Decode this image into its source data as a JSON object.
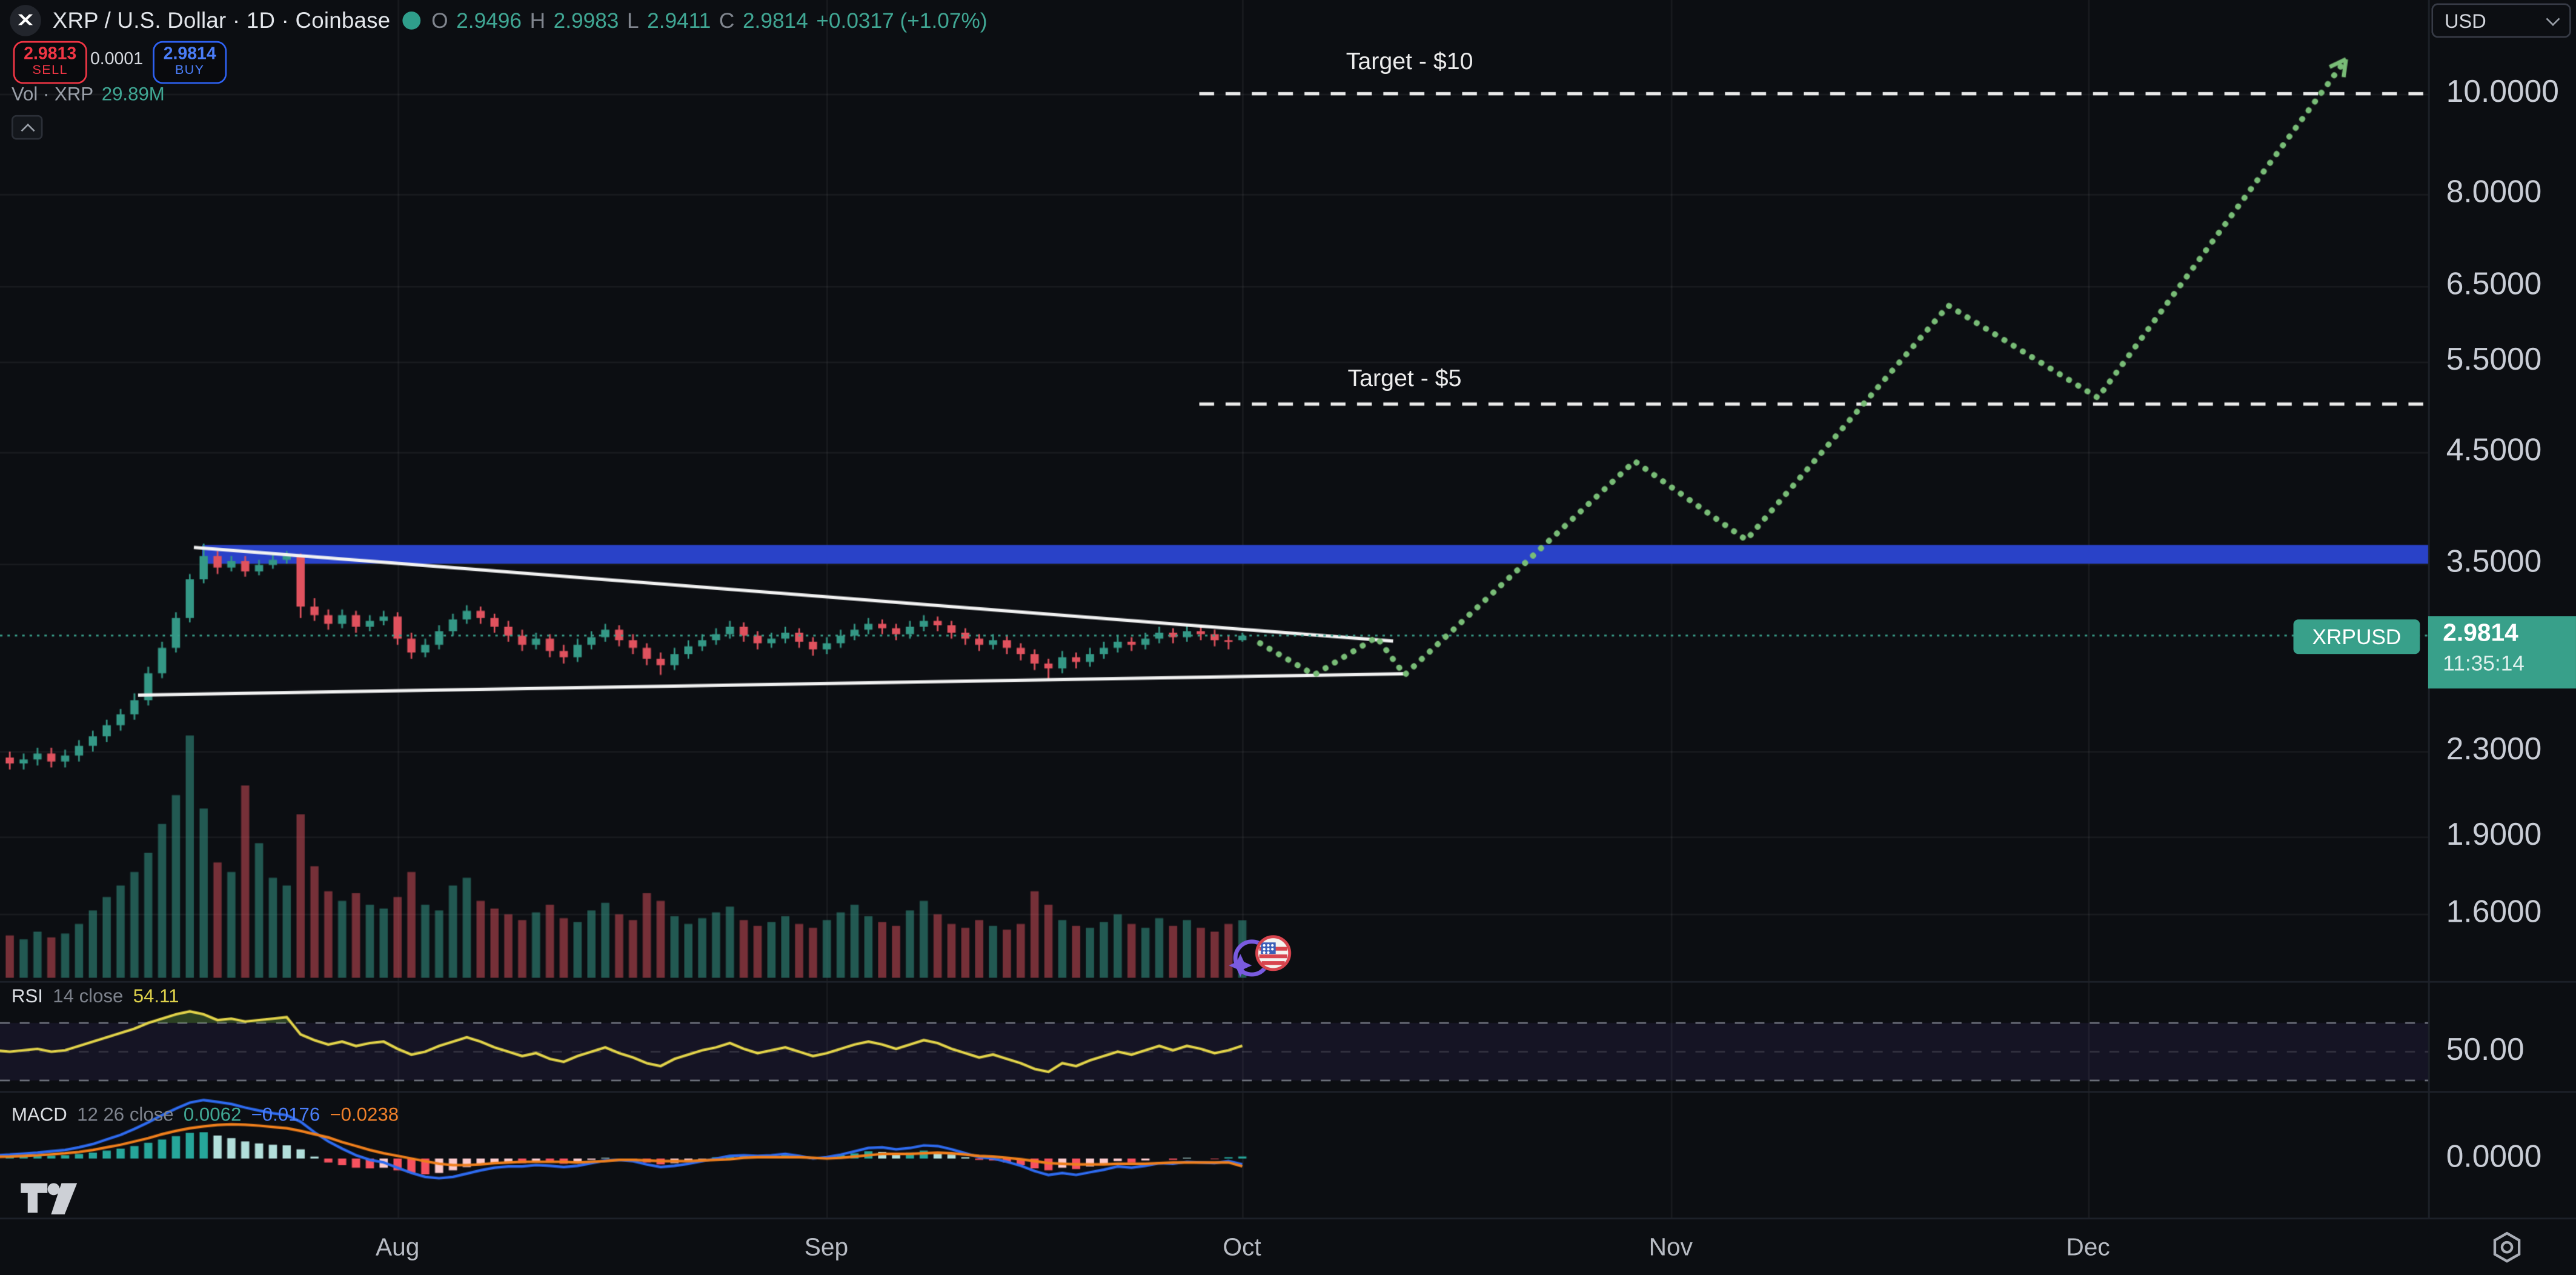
{
  "header": {
    "title": "XRP / U.S. Dollar · 1D · Coinbase",
    "ohlc": [
      {
        "k": "O",
        "v": "2.9496"
      },
      {
        "k": "H",
        "v": "2.9983"
      },
      {
        "k": "L",
        "v": "2.9411"
      },
      {
        "k": "C",
        "v": "2.9814"
      }
    ],
    "change": "+0.0317 (+1.07%)"
  },
  "order_panel": {
    "sell_price": "2.9813",
    "sell_label": "SELL",
    "spread": "0.0001",
    "buy_price": "2.9814",
    "buy_label": "BUY"
  },
  "volume_legend": {
    "label": "Vol · XRP",
    "value": "29.89M"
  },
  "rsi_legend": {
    "name": "RSI",
    "params": "14 close",
    "value": "54.11"
  },
  "macd_legend": {
    "name": "MACD",
    "params": "12 26 close",
    "v_hist": "0.0062",
    "v_macd": "−0.0176",
    "v_signal": "−0.0238"
  },
  "annotations": {
    "target10": "Target - $10",
    "target5": "Target - $5"
  },
  "price_scale": {
    "currency": "USD",
    "labels": [
      {
        "text": "10.0000",
        "price": 10.0
      },
      {
        "text": "8.0000",
        "price": 8.0
      },
      {
        "text": "6.5000",
        "price": 6.5
      },
      {
        "text": "5.5000",
        "price": 5.5
      },
      {
        "text": "4.5000",
        "price": 4.5
      },
      {
        "text": "3.5000",
        "price": 3.5
      },
      {
        "text": "2.3000",
        "price": 2.3
      },
      {
        "text": "1.9000",
        "price": 1.9
      },
      {
        "text": "1.6000",
        "price": 1.6
      }
    ],
    "symbol_badge": "XRPUSD",
    "last_price": "2.9814",
    "countdown": "11:35:14",
    "rsi_axis_label": "50.00",
    "macd_axis_label": "0.0000"
  },
  "time_axis": {
    "months": [
      {
        "label": "Aug",
        "x": 242
      },
      {
        "label": "Sep",
        "x": 503
      },
      {
        "label": "Oct",
        "x": 756
      },
      {
        "label": "Nov",
        "x": 1017
      },
      {
        "label": "Dec",
        "x": 1271
      }
    ]
  },
  "colors": {
    "bg": "#0c0e12",
    "up": "#349886",
    "down": "#e0525e",
    "band_blue": "#2942c8",
    "trendline": "#f2f2f2",
    "projection_green": "#79bd77",
    "price_line": "#3aa18c",
    "rsi_line": "#e3d44a",
    "macd_line": "#2e6bf0",
    "signal_line": "#ef7f1c",
    "hist_up_grow": "#26A69A",
    "hist_up_fall": "#B2DFDB",
    "hist_dn_grow": "#F7525F",
    "hist_dn_fall": "#FCCBCD"
  },
  "chart_data": {
    "type": "candlestick",
    "symbol": "XRPUSD",
    "timeframe": "1D",
    "scale": "log",
    "ylim": [
      1.45,
      11.5
    ],
    "resistance_zone": {
      "price_top": 3.65,
      "price_bottom": 3.5,
      "start_x": 123
    },
    "targets": [
      {
        "price": 10,
        "label": "Target - $10",
        "x_start": 730
      },
      {
        "price": 5,
        "label": "Target - $5",
        "x_start": 730
      }
    ],
    "current_price": 2.9814,
    "trendlines": [
      {
        "points": [
          [
            118,
            3.63
          ],
          [
            848,
            2.944
          ]
        ]
      },
      {
        "points": [
          [
            84,
            2.61
          ],
          [
            855,
            2.737
          ]
        ]
      }
    ],
    "projection": [
      [
        767,
        2.93
      ],
      [
        800,
        2.73
      ],
      [
        838,
        2.97
      ],
      [
        855,
        2.73
      ],
      [
        995,
        4.4
      ],
      [
        1063,
        3.69
      ],
      [
        1186,
        6.23
      ],
      [
        1277,
        5.07
      ],
      [
        1428,
        10.8
      ]
    ],
    "candles": [
      [
        2.25,
        2.3,
        2.22,
        2.27
      ],
      [
        2.27,
        2.3,
        2.21,
        2.24
      ],
      [
        2.24,
        2.29,
        2.21,
        2.26
      ],
      [
        2.26,
        2.32,
        2.23,
        2.29
      ],
      [
        2.29,
        2.32,
        2.22,
        2.25
      ],
      [
        2.25,
        2.31,
        2.22,
        2.28
      ],
      [
        2.28,
        2.36,
        2.25,
        2.33
      ],
      [
        2.33,
        2.41,
        2.3,
        2.38
      ],
      [
        2.38,
        2.47,
        2.35,
        2.44
      ],
      [
        2.44,
        2.53,
        2.41,
        2.5
      ],
      [
        2.5,
        2.62,
        2.47,
        2.58
      ],
      [
        2.58,
        2.78,
        2.55,
        2.74
      ],
      [
        2.74,
        2.94,
        2.71,
        2.9
      ],
      [
        2.9,
        3.14,
        2.87,
        3.1
      ],
      [
        3.1,
        3.42,
        3.07,
        3.38
      ],
      [
        3.38,
        3.66,
        3.35,
        3.56
      ],
      [
        3.56,
        3.6,
        3.42,
        3.47
      ],
      [
        3.47,
        3.56,
        3.44,
        3.52
      ],
      [
        3.52,
        3.56,
        3.4,
        3.44
      ],
      [
        3.44,
        3.53,
        3.41,
        3.49
      ],
      [
        3.49,
        3.57,
        3.46,
        3.53
      ],
      [
        3.53,
        3.6,
        3.5,
        3.56
      ],
      [
        3.56,
        3.58,
        3.1,
        3.18
      ],
      [
        3.18,
        3.24,
        3.08,
        3.12
      ],
      [
        3.12,
        3.16,
        3.02,
        3.06
      ],
      [
        3.06,
        3.16,
        3.03,
        3.12
      ],
      [
        3.12,
        3.15,
        3.0,
        3.04
      ],
      [
        3.04,
        3.12,
        3.01,
        3.08
      ],
      [
        3.08,
        3.15,
        3.05,
        3.11
      ],
      [
        3.11,
        3.14,
        2.92,
        2.96
      ],
      [
        2.96,
        3.0,
        2.83,
        2.87
      ],
      [
        2.87,
        2.96,
        2.84,
        2.92
      ],
      [
        2.92,
        3.05,
        2.89,
        3.01
      ],
      [
        3.01,
        3.13,
        2.98,
        3.09
      ],
      [
        3.09,
        3.19,
        3.06,
        3.15
      ],
      [
        3.15,
        3.18,
        3.06,
        3.1
      ],
      [
        3.1,
        3.13,
        3.0,
        3.04
      ],
      [
        3.04,
        3.08,
        2.94,
        2.98
      ],
      [
        2.98,
        3.02,
        2.88,
        2.92
      ],
      [
        2.92,
        3.0,
        2.89,
        2.96
      ],
      [
        2.96,
        2.99,
        2.84,
        2.88
      ],
      [
        2.88,
        2.92,
        2.8,
        2.84
      ],
      [
        2.84,
        2.96,
        2.81,
        2.92
      ],
      [
        2.92,
        3.01,
        2.89,
        2.97
      ],
      [
        2.97,
        3.06,
        2.94,
        3.02
      ],
      [
        3.02,
        3.05,
        2.91,
        2.95
      ],
      [
        2.95,
        2.99,
        2.86,
        2.9
      ],
      [
        2.9,
        2.93,
        2.79,
        2.83
      ],
      [
        2.83,
        2.87,
        2.73,
        2.79
      ],
      [
        2.79,
        2.9,
        2.76,
        2.86
      ],
      [
        2.86,
        2.95,
        2.83,
        2.91
      ],
      [
        2.91,
        2.99,
        2.88,
        2.95
      ],
      [
        2.95,
        3.03,
        2.92,
        2.99
      ],
      [
        2.99,
        3.08,
        2.96,
        3.04
      ],
      [
        3.04,
        3.07,
        2.94,
        2.98
      ],
      [
        2.98,
        3.01,
        2.89,
        2.93
      ],
      [
        2.93,
        3.0,
        2.9,
        2.96
      ],
      [
        2.96,
        3.04,
        2.93,
        3.0
      ],
      [
        3.0,
        3.03,
        2.9,
        2.94
      ],
      [
        2.94,
        2.97,
        2.85,
        2.89
      ],
      [
        2.89,
        2.97,
        2.86,
        2.93
      ],
      [
        2.93,
        3.02,
        2.9,
        2.98
      ],
      [
        2.98,
        3.06,
        2.95,
        3.02
      ],
      [
        3.02,
        3.1,
        2.99,
        3.06
      ],
      [
        3.06,
        3.09,
        2.99,
        3.03
      ],
      [
        3.03,
        3.06,
        2.95,
        2.99
      ],
      [
        2.99,
        3.08,
        2.96,
        3.04
      ],
      [
        3.04,
        3.12,
        3.01,
        3.08
      ],
      [
        3.08,
        3.11,
        3.01,
        3.05
      ],
      [
        3.05,
        3.08,
        2.96,
        3.0
      ],
      [
        3.0,
        3.03,
        2.92,
        2.96
      ],
      [
        2.96,
        2.99,
        2.88,
        2.92
      ],
      [
        2.92,
        2.99,
        2.89,
        2.95
      ],
      [
        2.95,
        2.98,
        2.86,
        2.9
      ],
      [
        2.9,
        2.93,
        2.82,
        2.86
      ],
      [
        2.86,
        2.89,
        2.76,
        2.8
      ],
      [
        2.8,
        2.83,
        2.7,
        2.77
      ],
      [
        2.77,
        2.88,
        2.74,
        2.84
      ],
      [
        2.84,
        2.87,
        2.77,
        2.81
      ],
      [
        2.81,
        2.9,
        2.78,
        2.86
      ],
      [
        2.86,
        2.94,
        2.83,
        2.9
      ],
      [
        2.9,
        2.98,
        2.87,
        2.94
      ],
      [
        2.94,
        2.97,
        2.88,
        2.92
      ],
      [
        2.92,
        3.0,
        2.89,
        2.96
      ],
      [
        2.96,
        3.04,
        2.93,
        3.0
      ],
      [
        3.0,
        3.03,
        2.93,
        2.97
      ],
      [
        2.97,
        3.05,
        2.94,
        3.01
      ],
      [
        3.01,
        3.04,
        2.95,
        2.99
      ],
      [
        2.99,
        3.02,
        2.91,
        2.95
      ],
      [
        2.95,
        2.98,
        2.89,
        2.94
      ],
      [
        2.95,
        3.0,
        2.94,
        2.98
      ]
    ],
    "volume_m": [
      25,
      22,
      20,
      24,
      21,
      23,
      28,
      35,
      42,
      48,
      55,
      65,
      80,
      95,
      126,
      88,
      60,
      55,
      100,
      70,
      52,
      48,
      85,
      58,
      45,
      40,
      44,
      38,
      36,
      42,
      55,
      38,
      35,
      48,
      52,
      40,
      36,
      33,
      30,
      34,
      38,
      31,
      29,
      35,
      39,
      33,
      30,
      44,
      40,
      32,
      28,
      31,
      34,
      37,
      30,
      27,
      29,
      32,
      28,
      26,
      30,
      34,
      38,
      32,
      29,
      27,
      35,
      40,
      33,
      28,
      26,
      30,
      27,
      25,
      28,
      45,
      38,
      30,
      27,
      26,
      29,
      33,
      28,
      26,
      31,
      27,
      30,
      26,
      24,
      28,
      29.89
    ],
    "rsi": {
      "period": 14,
      "last": 54.11,
      "bands": [
        70,
        50,
        30
      ],
      "values": [
        51,
        50,
        51,
        52,
        50,
        51,
        54,
        57,
        60,
        63,
        66,
        70,
        73,
        76,
        78,
        76,
        72,
        73,
        71,
        72,
        73,
        74,
        62,
        58,
        55,
        57,
        54,
        56,
        57,
        52,
        48,
        50,
        54,
        57,
        60,
        57,
        53,
        50,
        47,
        49,
        45,
        43,
        47,
        50,
        53,
        49,
        46,
        42,
        40,
        45,
        48,
        51,
        53,
        56,
        52,
        49,
        51,
        53,
        50,
        47,
        49,
        52,
        55,
        57,
        55,
        52,
        55,
        58,
        56,
        52,
        49,
        46,
        48,
        45,
        42,
        38,
        36,
        42,
        40,
        44,
        47,
        50,
        48,
        51,
        54,
        51,
        54,
        52,
        49,
        51,
        54.11
      ]
    },
    "macd": {
      "fast": 12,
      "slow": 26,
      "last_hist": 0.0062,
      "last_macd": -0.0176,
      "last_signal": -0.0238,
      "macd_line": [
        0.01,
        0.012,
        0.015,
        0.018,
        0.022,
        0.026,
        0.034,
        0.044,
        0.058,
        0.072,
        0.09,
        0.11,
        0.132,
        0.152,
        0.17,
        0.178,
        0.172,
        0.166,
        0.155,
        0.146,
        0.138,
        0.132,
        0.112,
        0.08,
        0.052,
        0.03,
        0.01,
        -0.004,
        -0.012,
        -0.028,
        -0.044,
        -0.056,
        -0.06,
        -0.056,
        -0.046,
        -0.036,
        -0.028,
        -0.024,
        -0.024,
        -0.02,
        -0.022,
        -0.026,
        -0.022,
        -0.014,
        -0.006,
        -0.004,
        -0.008,
        -0.018,
        -0.026,
        -0.022,
        -0.016,
        -0.008,
        0.0,
        0.008,
        0.01,
        0.008,
        0.01,
        0.014,
        0.008,
        0.0,
        0.004,
        0.012,
        0.022,
        0.032,
        0.034,
        0.028,
        0.032,
        0.04,
        0.038,
        0.028,
        0.016,
        0.004,
        0.0,
        -0.01,
        -0.022,
        -0.038,
        -0.05,
        -0.044,
        -0.05,
        -0.042,
        -0.034,
        -0.024,
        -0.028,
        -0.022,
        -0.014,
        -0.016,
        -0.01,
        -0.012,
        -0.014,
        -0.008,
        -0.0176
      ],
      "hist": [
        0.005,
        0.006,
        0.007,
        0.008,
        0.009,
        0.01,
        0.014,
        0.018,
        0.024,
        0.03,
        0.038,
        0.048,
        0.058,
        0.068,
        0.078,
        0.08,
        0.07,
        0.062,
        0.052,
        0.046,
        0.042,
        0.04,
        0.028,
        0.006,
        -0.012,
        -0.02,
        -0.028,
        -0.03,
        -0.028,
        -0.036,
        -0.044,
        -0.048,
        -0.044,
        -0.036,
        -0.026,
        -0.018,
        -0.014,
        -0.012,
        -0.014,
        -0.01,
        -0.012,
        -0.016,
        -0.01,
        -0.004,
        0.002,
        0.0,
        -0.004,
        -0.012,
        -0.018,
        -0.014,
        -0.008,
        -0.002,
        0.004,
        0.01,
        0.008,
        0.004,
        0.006,
        0.01,
        0.004,
        -0.002,
        0.004,
        0.01,
        0.016,
        0.022,
        0.02,
        0.014,
        0.018,
        0.024,
        0.02,
        0.012,
        0.004,
        -0.004,
        -0.006,
        -0.012,
        -0.02,
        -0.03,
        -0.036,
        -0.028,
        -0.032,
        -0.024,
        -0.016,
        -0.008,
        -0.012,
        -0.006,
        0.0,
        -0.004,
        0.002,
        0.0,
        -0.002,
        0.004,
        0.0062
      ]
    }
  }
}
